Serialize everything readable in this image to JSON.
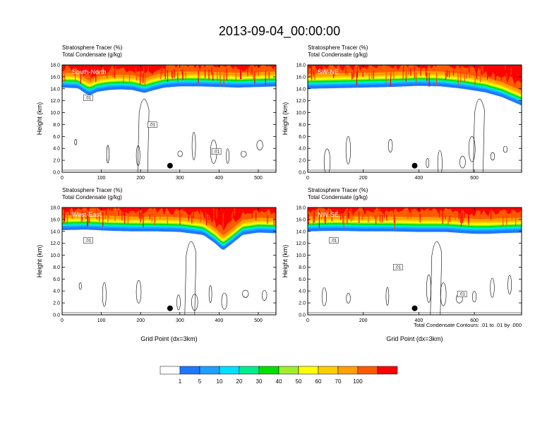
{
  "figure": {
    "title": "2013-09-04_00:00:00",
    "note": "Total Condensate Contours: .01 to .01 by .000"
  },
  "colorbar": {
    "labels": [
      "1",
      "5",
      "10",
      "20",
      "30",
      "40",
      "50",
      "60",
      "70",
      "100"
    ],
    "colors": [
      "#ffffff",
      "#1e78ff",
      "#1ea0ff",
      "#00e0ff",
      "#00ee8c",
      "#00e000",
      "#a0ee2a",
      "#ffff00",
      "#ffcc00",
      "#ffa000",
      "#ff5a00",
      "#ff0000"
    ]
  },
  "chart_data": [
    {
      "type": "heatmap",
      "panel": "South-North",
      "left_labels": [
        "Stratosphere Tracer   (%)",
        "Total Condensate   (g/kg)"
      ],
      "ylabel": "Height (km)",
      "xlabel": "",
      "xlim": [
        0,
        545
      ],
      "ylim": [
        0,
        18
      ],
      "xticks": [
        0,
        100,
        200,
        300,
        400,
        500
      ],
      "yticks": [
        0,
        2,
        4,
        6,
        8,
        10,
        12,
        14,
        16,
        18
      ],
      "ytick_labels": [
        "0.0",
        "2.0",
        "4.0",
        "6.0",
        "8.0",
        "10.0",
        "12.0",
        "14.0",
        "16.0",
        "18.0"
      ],
      "tropopause_x": [
        0,
        40,
        60,
        70,
        90,
        120,
        150,
        180,
        210,
        230,
        260,
        300,
        350,
        400,
        450,
        500,
        545
      ],
      "tropopause_km": [
        14.2,
        14.1,
        13.2,
        12.9,
        13.5,
        13.8,
        13.9,
        13.8,
        13.3,
        13.7,
        14.2,
        14.4,
        14.4,
        14.3,
        14.2,
        14.3,
        14.4
      ],
      "contour_labels": [
        ".01",
        ".01",
        ".01"
      ],
      "marker": {
        "x": 275,
        "y_km": 1.1
      }
    },
    {
      "type": "heatmap",
      "panel": "SW-NE",
      "left_labels": [
        "Stratosphere Tracer   (%)",
        "Total Condensate   (g/kg)"
      ],
      "ylabel": "Height (km)",
      "xlabel": "",
      "xlim": [
        0,
        770
      ],
      "ylim": [
        0,
        18
      ],
      "xticks": [
        0,
        200,
        400,
        600
      ],
      "yticks": [
        0,
        2,
        4,
        6,
        8,
        10,
        12,
        14,
        16,
        18
      ],
      "ytick_labels": [
        "0.0",
        "2.0",
        "4.0",
        "6.0",
        "8.0",
        "10.0",
        "12.0",
        "14.0",
        "16.0",
        "18.0"
      ],
      "tropopause_x": [
        0,
        100,
        200,
        300,
        400,
        480,
        560,
        640,
        700,
        770
      ],
      "tropopause_km": [
        14.0,
        14.1,
        14.2,
        14.3,
        14.5,
        14.4,
        14.0,
        13.4,
        12.6,
        11.2
      ],
      "contour_labels": [],
      "marker": {
        "x": 385,
        "y_km": 1.1
      }
    },
    {
      "type": "heatmap",
      "panel": "West-East",
      "left_labels": [
        "Stratosphere Tracer   (%)",
        "Total Condensate   (g/kg)"
      ],
      "ylabel": "Height (km)",
      "xlabel": "Grid Point (dx=3km)",
      "xlim": [
        0,
        545
      ],
      "ylim": [
        0,
        18
      ],
      "xticks": [
        0,
        100,
        200,
        300,
        400,
        500
      ],
      "yticks": [
        0,
        2,
        4,
        6,
        8,
        10,
        12,
        14,
        16,
        18
      ],
      "ytick_labels": [
        "0.0",
        "2.0",
        "4.0",
        "6.0",
        "8.0",
        "10.0",
        "12.0",
        "14.0",
        "16.0",
        "18.0"
      ],
      "tropopause_x": [
        0,
        60,
        120,
        180,
        240,
        300,
        360,
        390,
        410,
        430,
        460,
        500,
        545
      ],
      "tropopause_km": [
        14.2,
        14.3,
        14.1,
        14.0,
        14.0,
        13.9,
        13.4,
        12.0,
        10.8,
        11.8,
        13.4,
        13.8,
        13.7
      ],
      "contour_labels": [
        ".01"
      ],
      "marker": {
        "x": 275,
        "y_km": 1.1
      }
    },
    {
      "type": "heatmap",
      "panel": "NW-SE",
      "left_labels": [
        "Stratosphere Tracer   (%)",
        "Total Condensate   (g/kg)"
      ],
      "ylabel": "Height (km)",
      "xlabel": "Grid Point (dx=3km)",
      "xlim": [
        0,
        770
      ],
      "ylim": [
        0,
        18
      ],
      "xticks": [
        0,
        200,
        400,
        600
      ],
      "yticks": [
        0,
        2,
        4,
        6,
        8,
        10,
        12,
        14,
        16,
        18
      ],
      "ytick_labels": [
        "0.0",
        "2.0",
        "4.0",
        "6.0",
        "8.0",
        "10.0",
        "12.0",
        "14.0",
        "16.0",
        "18.0"
      ],
      "tropopause_x": [
        0,
        100,
        200,
        300,
        400,
        500,
        560,
        600,
        650,
        700,
        770
      ],
      "tropopause_km": [
        14.0,
        14.1,
        14.0,
        14.0,
        13.9,
        13.9,
        13.7,
        13.6,
        13.6,
        13.7,
        13.8
      ],
      "contour_labels": [
        ".01",
        ".01",
        ".01"
      ],
      "marker": {
        "x": 385,
        "y_km": 1.1
      }
    }
  ]
}
